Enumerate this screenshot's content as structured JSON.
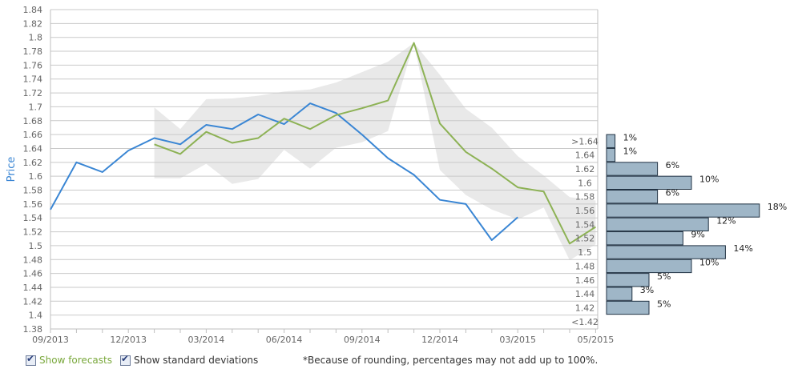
{
  "chart_data": {
    "type": "line",
    "ylabel": "Price",
    "ylim": [
      1.38,
      1.84
    ],
    "y_ticks": [
      "1.38",
      "1.4",
      "1.42",
      "1.44",
      "1.46",
      "1.48",
      "1.5",
      "1.52",
      "1.54",
      "1.56",
      "1.58",
      "1.6",
      "1.62",
      "1.64",
      "1.66",
      "1.68",
      "1.7",
      "1.72",
      "1.74",
      "1.76",
      "1.78",
      "1.8",
      "1.82",
      "1.84"
    ],
    "x_labels": [
      {
        "label": "09/2013",
        "i": 0
      },
      {
        "label": "12/2013",
        "i": 3
      },
      {
        "label": "03/2014",
        "i": 6
      },
      {
        "label": "06/2014",
        "i": 9
      },
      {
        "label": "09/2014",
        "i": 12
      },
      {
        "label": "12/2014",
        "i": 15
      },
      {
        "label": "03/2015",
        "i": 18
      },
      {
        "label": "05/2015",
        "i": 21
      }
    ],
    "grid": true,
    "series": [
      {
        "color": "#3a86d4",
        "points": [
          [
            0,
            1.552
          ],
          [
            1,
            1.62
          ],
          [
            2,
            1.606
          ],
          [
            3,
            1.637
          ],
          [
            4,
            1.655
          ],
          [
            5,
            1.646
          ],
          [
            6,
            1.674
          ],
          [
            7,
            1.668
          ],
          [
            8,
            1.689
          ],
          [
            9,
            1.675
          ],
          [
            10,
            1.705
          ],
          [
            11,
            1.691
          ],
          [
            12,
            1.66
          ],
          [
            13,
            1.626
          ],
          [
            14,
            1.602
          ],
          [
            15,
            1.566
          ],
          [
            16,
            1.56
          ],
          [
            17,
            1.508
          ],
          [
            18,
            1.541
          ]
        ]
      },
      {
        "color": "#8db255",
        "points": [
          [
            4,
            1.646
          ],
          [
            5,
            1.632
          ],
          [
            6,
            1.664
          ],
          [
            7,
            1.648
          ],
          [
            8,
            1.655
          ],
          [
            9,
            1.683
          ],
          [
            10,
            1.668
          ],
          [
            11,
            1.688
          ],
          [
            12,
            1.698
          ],
          [
            13,
            1.709
          ],
          [
            14,
            1.792
          ],
          [
            15,
            1.676
          ],
          [
            16,
            1.635
          ],
          [
            17,
            1.611
          ],
          [
            18,
            1.584
          ],
          [
            19,
            1.578
          ],
          [
            20,
            1.503
          ],
          [
            21,
            1.527
          ]
        ]
      }
    ],
    "std_band": [
      {
        "i": 4,
        "upper": 1.699,
        "lower": 1.597
      },
      {
        "i": 5,
        "upper": 1.668,
        "lower": 1.597
      },
      {
        "i": 6,
        "upper": 1.711,
        "lower": 1.618
      },
      {
        "i": 7,
        "upper": 1.712,
        "lower": 1.589
      },
      {
        "i": 8,
        "upper": 1.716,
        "lower": 1.596
      },
      {
        "i": 9,
        "upper": 1.722,
        "lower": 1.638
      },
      {
        "i": 10,
        "upper": 1.725,
        "lower": 1.611
      },
      {
        "i": 11,
        "upper": 1.735,
        "lower": 1.641
      },
      {
        "i": 12,
        "upper": 1.75,
        "lower": 1.649
      },
      {
        "i": 13,
        "upper": 1.765,
        "lower": 1.665
      },
      {
        "i": 14,
        "upper": 1.792,
        "lower": 1.792
      },
      {
        "i": 15,
        "upper": 1.746,
        "lower": 1.609
      },
      {
        "i": 16,
        "upper": 1.697,
        "lower": 1.573
      },
      {
        "i": 17,
        "upper": 1.67,
        "lower": 1.552
      },
      {
        "i": 18,
        "upper": 1.629,
        "lower": 1.538
      },
      {
        "i": 19,
        "upper": 1.601,
        "lower": 1.555
      },
      {
        "i": 20,
        "upper": 1.57,
        "lower": 1.479
      },
      {
        "i": 21,
        "upper": 1.565,
        "lower": 1.502
      }
    ],
    "distribution": [
      {
        "bin": ">1.64",
        "pct": 1,
        "label": "1%"
      },
      {
        "bin": "1.64",
        "pct": 1,
        "label": "1%"
      },
      {
        "bin": "1.62",
        "pct": 6,
        "label": "6%"
      },
      {
        "bin": "1.6",
        "pct": 10,
        "label": "10%"
      },
      {
        "bin": "1.58",
        "pct": 6,
        "label": "6%"
      },
      {
        "bin": "1.56",
        "pct": 18,
        "label": "18%"
      },
      {
        "bin": "1.54",
        "pct": 12,
        "label": "12%"
      },
      {
        "bin": "1.52",
        "pct": 9,
        "label": "9%"
      },
      {
        "bin": "1.5",
        "pct": 14,
        "label": "14%"
      },
      {
        "bin": "1.48",
        "pct": 10,
        "label": "10%"
      },
      {
        "bin": "1.46",
        "pct": 5,
        "label": "5%"
      },
      {
        "bin": "1.44",
        "pct": 3,
        "label": "3%"
      },
      {
        "bin": "1.42",
        "pct": 5,
        "label": "5%"
      },
      {
        "bin": "<1.42",
        "pct": 0,
        "label": ""
      }
    ],
    "colors": {
      "grid": "#c9c9c9",
      "band": "#e9e9e9",
      "bar_fill": "#9fb6c7",
      "bar_stroke": "#223344",
      "ylabel": "#3a86d4"
    }
  },
  "controls": {
    "show_forecasts_label": "Show forecasts",
    "show_std_label": "Show standard deviations",
    "note": "*Because of rounding, percentages may not add up to 100%."
  }
}
